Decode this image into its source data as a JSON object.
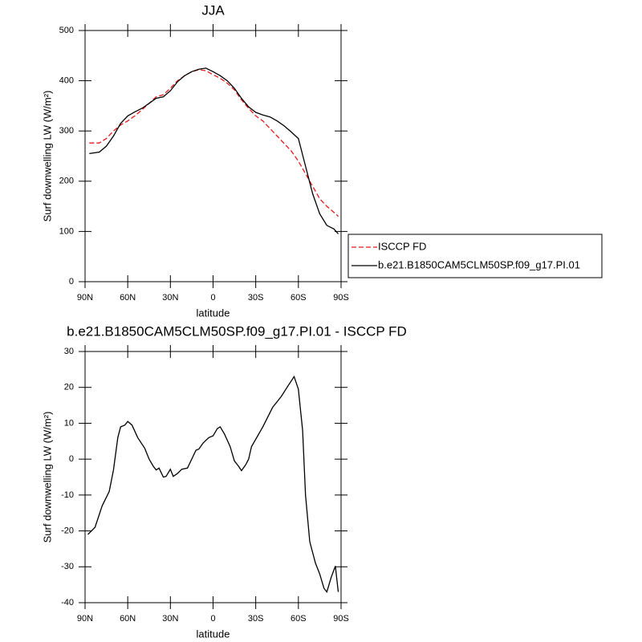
{
  "chart_data": [
    {
      "type": "line",
      "title": "JJA",
      "xlabel": "latitude",
      "ylabel": "Surf downwelling LW (W/m²)",
      "x": [
        87,
        80,
        75,
        70,
        65,
        60,
        55,
        50,
        45,
        40,
        35,
        30,
        25,
        20,
        15,
        10,
        5,
        0,
        -5,
        -10,
        -15,
        -20,
        -25,
        -30,
        -35,
        -40,
        -45,
        -50,
        -55,
        -60,
        -65,
        -70,
        -75,
        -80,
        -85,
        -88
      ],
      "xlim": [
        90,
        -90
      ],
      "xticks": [
        {
          "value": 90,
          "label": "90N"
        },
        {
          "value": 60,
          "label": "60N"
        },
        {
          "value": 30,
          "label": "30N"
        },
        0,
        {
          "value": -30,
          "label": "30S"
        },
        {
          "value": -60,
          "label": "60S"
        },
        {
          "value": -90,
          "label": "90S"
        }
      ],
      "ylim": [
        0,
        500
      ],
      "yticks": [
        0,
        100,
        200,
        300,
        400,
        500
      ],
      "legend": "right",
      "series": [
        {
          "name": "ISCCP FD",
          "color": "#e41a1c",
          "dash": true,
          "values": [
            276,
            276,
            285,
            300,
            312,
            320,
            330,
            342,
            355,
            368,
            372,
            385,
            400,
            410,
            418,
            422,
            420,
            412,
            405,
            395,
            382,
            362,
            345,
            330,
            320,
            305,
            290,
            275,
            260,
            240,
            215,
            190,
            165,
            150,
            138,
            130
          ]
        },
        {
          "name": "b.e21.B1850CAM5CLM50SP.f09_g17.PI.01",
          "color": "#000000",
          "dash": false,
          "values": [
            255,
            258,
            270,
            290,
            315,
            330,
            338,
            345,
            355,
            365,
            368,
            380,
            398,
            410,
            418,
            423,
            425,
            418,
            410,
            400,
            385,
            365,
            348,
            337,
            332,
            328,
            320,
            310,
            298,
            285,
            230,
            175,
            135,
            112,
            105,
            95
          ]
        }
      ]
    },
    {
      "type": "line",
      "title": "b.e21.B1850CAM5CLM50SP.f09_g17.PI.01 - ISCCP FD",
      "xlabel": "latitude",
      "ylabel": "Surf downwelling LW (W/m²)",
      "x": [
        88,
        83,
        78,
        73,
        70,
        67,
        65,
        62,
        60,
        57,
        53,
        48,
        45,
        42,
        40,
        38,
        35,
        33,
        30,
        28,
        25,
        22,
        18,
        15,
        12,
        10,
        7,
        3,
        0,
        -3,
        -5,
        -8,
        -12,
        -15,
        -18,
        -20,
        -23,
        -25,
        -27,
        -35,
        -42,
        -45,
        -48,
        -52,
        -57,
        -60,
        -63,
        -65,
        -68,
        -72,
        -75,
        -78,
        -80,
        -83,
        -86,
        -88
      ],
      "xlim": [
        90,
        -90
      ],
      "xticks": [
        {
          "value": 90,
          "label": "90N"
        },
        {
          "value": 60,
          "label": "60N"
        },
        {
          "value": 30,
          "label": "30N"
        },
        0,
        {
          "value": -30,
          "label": "30S"
        },
        {
          "value": -60,
          "label": "60S"
        },
        {
          "value": -90,
          "label": "90S"
        }
      ],
      "ylim": [
        -40,
        30
      ],
      "yticks": [
        -40,
        -30,
        -20,
        -10,
        0,
        10,
        20,
        30
      ],
      "series": [
        {
          "color": "#000000",
          "dash": false,
          "values": [
            -21,
            -19,
            -13,
            -9,
            -3,
            6,
            9,
            9.5,
            10.5,
            9.5,
            6,
            3,
            0,
            -2,
            -3,
            -2.5,
            -5,
            -4.8,
            -2.8,
            -4.8,
            -4,
            -2.8,
            -2.5,
            0,
            2.5,
            2.8,
            4.5,
            6,
            6.5,
            8.5,
            9,
            7,
            3.5,
            -0.5,
            -2,
            -3.2,
            -1.5,
            0,
            3.5,
            9,
            14.5,
            16,
            17.5,
            20,
            23,
            19.5,
            8,
            -10,
            -23,
            -29,
            -32,
            -36,
            -37,
            -33,
            -29.8,
            -37
          ]
        }
      ]
    }
  ]
}
